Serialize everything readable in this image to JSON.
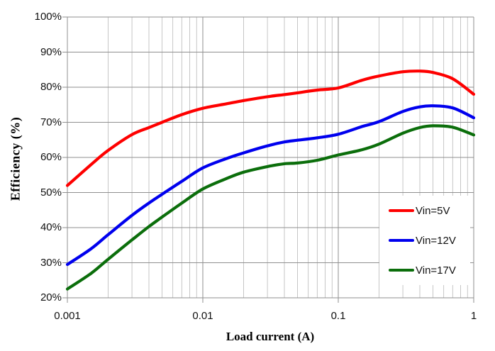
{
  "chart_data": {
    "type": "line",
    "title": "",
    "xlabel": "Load current (A)",
    "ylabel": "Efficiency (%)",
    "x_scale": "log",
    "xlim": [
      0.001,
      1
    ],
    "ylim": [
      20,
      100
    ],
    "grid": true,
    "legend_position": "lower right",
    "x_ticks": [
      {
        "value": 0.001,
        "label": "0.001"
      },
      {
        "value": 0.01,
        "label": "0.01"
      },
      {
        "value": 0.1,
        "label": "0.1"
      },
      {
        "value": 1,
        "label": "1"
      }
    ],
    "y_ticks": [
      {
        "value": 100,
        "label": "100%"
      },
      {
        "value": 90,
        "label": "90%"
      },
      {
        "value": 80,
        "label": "80%"
      },
      {
        "value": 70,
        "label": "70%"
      },
      {
        "value": 60,
        "label": "60%"
      },
      {
        "value": 50,
        "label": "50%"
      },
      {
        "value": 40,
        "label": "40%"
      },
      {
        "value": 30,
        "label": "30%"
      },
      {
        "value": 20,
        "label": "20%"
      }
    ],
    "x": [
      0.001,
      0.0015,
      0.002,
      0.003,
      0.004,
      0.005,
      0.007,
      0.01,
      0.015,
      0.02,
      0.03,
      0.04,
      0.05,
      0.07,
      0.1,
      0.15,
      0.2,
      0.3,
      0.4,
      0.5,
      0.7,
      1.0
    ],
    "series": [
      {
        "name": "Vin=5V",
        "color": "#fe0000",
        "values": [
          52,
          58,
          62,
          66.5,
          68.5,
          70,
          72.2,
          74,
          75.3,
          76.2,
          77.3,
          77.9,
          78.4,
          79.2,
          79.8,
          82,
          83.2,
          84.4,
          84.6,
          84.2,
          82.4,
          78
        ]
      },
      {
        "name": "Vin=12V",
        "color": "#0000ee",
        "values": [
          29.5,
          34,
          38,
          43.5,
          47,
          49.5,
          53.2,
          57,
          59.7,
          61.3,
          63.3,
          64.4,
          64.9,
          65.6,
          66.6,
          68.8,
          70.2,
          73.1,
          74.4,
          74.7,
          74.1,
          71.3
        ]
      },
      {
        "name": "Vin=17V",
        "color": "#0b6e0b",
        "values": [
          22.5,
          27,
          31,
          36.5,
          40.3,
          43,
          47,
          51,
          54,
          55.8,
          57.4,
          58.2,
          58.4,
          59.2,
          60.7,
          62.2,
          63.8,
          66.9,
          68.5,
          69,
          68.6,
          66.4
        ]
      }
    ]
  },
  "colors": {
    "grid_major": "#8f8f8f",
    "grid_minor": "#c6c6c6",
    "axis": "#8f8f8f",
    "background": "#ffffff",
    "text": "#111111"
  }
}
